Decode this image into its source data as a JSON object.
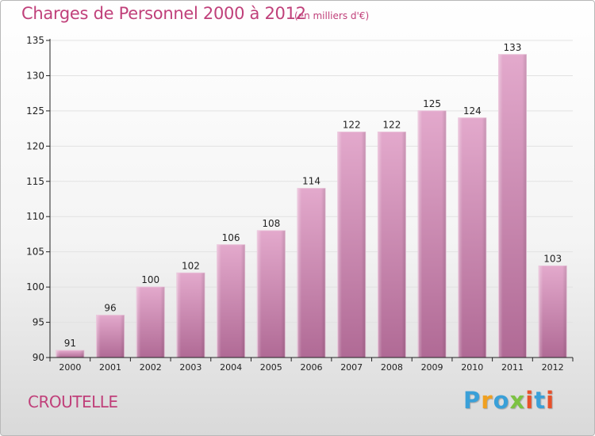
{
  "header": {
    "title": "Charges de Personnel 2000 à 2012",
    "unit": "(en milliers d'€)"
  },
  "footer": {
    "commune": "CROUTELLE",
    "brand": "Proxiti",
    "brand_letters": [
      {
        "char": "P",
        "color": "#3aa0d8"
      },
      {
        "char": "r",
        "color": "#f0a020"
      },
      {
        "char": "o",
        "color": "#3aa0d8"
      },
      {
        "char": "x",
        "color": "#7cc242"
      },
      {
        "char": "i",
        "color": "#e8502a"
      },
      {
        "char": "t",
        "color": "#3aa0d8"
      },
      {
        "char": "i",
        "color": "#e8502a"
      }
    ]
  },
  "colors": {
    "accent": "#c0407a",
    "bar_top": "#e3a9cc",
    "bar_bottom": "#b06a95",
    "axis": "#222222",
    "grid": "#e2e2e2"
  },
  "chart_data": {
    "type": "bar",
    "title": "Charges de Personnel 2000 à 2012",
    "subtitle": "(en milliers d'€)",
    "xlabel": "",
    "ylabel": "",
    "categories": [
      "2000",
      "2001",
      "2002",
      "2003",
      "2004",
      "2005",
      "2006",
      "2007",
      "2008",
      "2009",
      "2010",
      "2011",
      "2012"
    ],
    "values": [
      91,
      96,
      100,
      102,
      106,
      108,
      114,
      122,
      122,
      125,
      124,
      133,
      103
    ],
    "ylim": [
      90,
      135
    ],
    "yticks": [
      90,
      95,
      100,
      105,
      110,
      115,
      120,
      125,
      130,
      135
    ],
    "grid": true,
    "legend": "none"
  }
}
